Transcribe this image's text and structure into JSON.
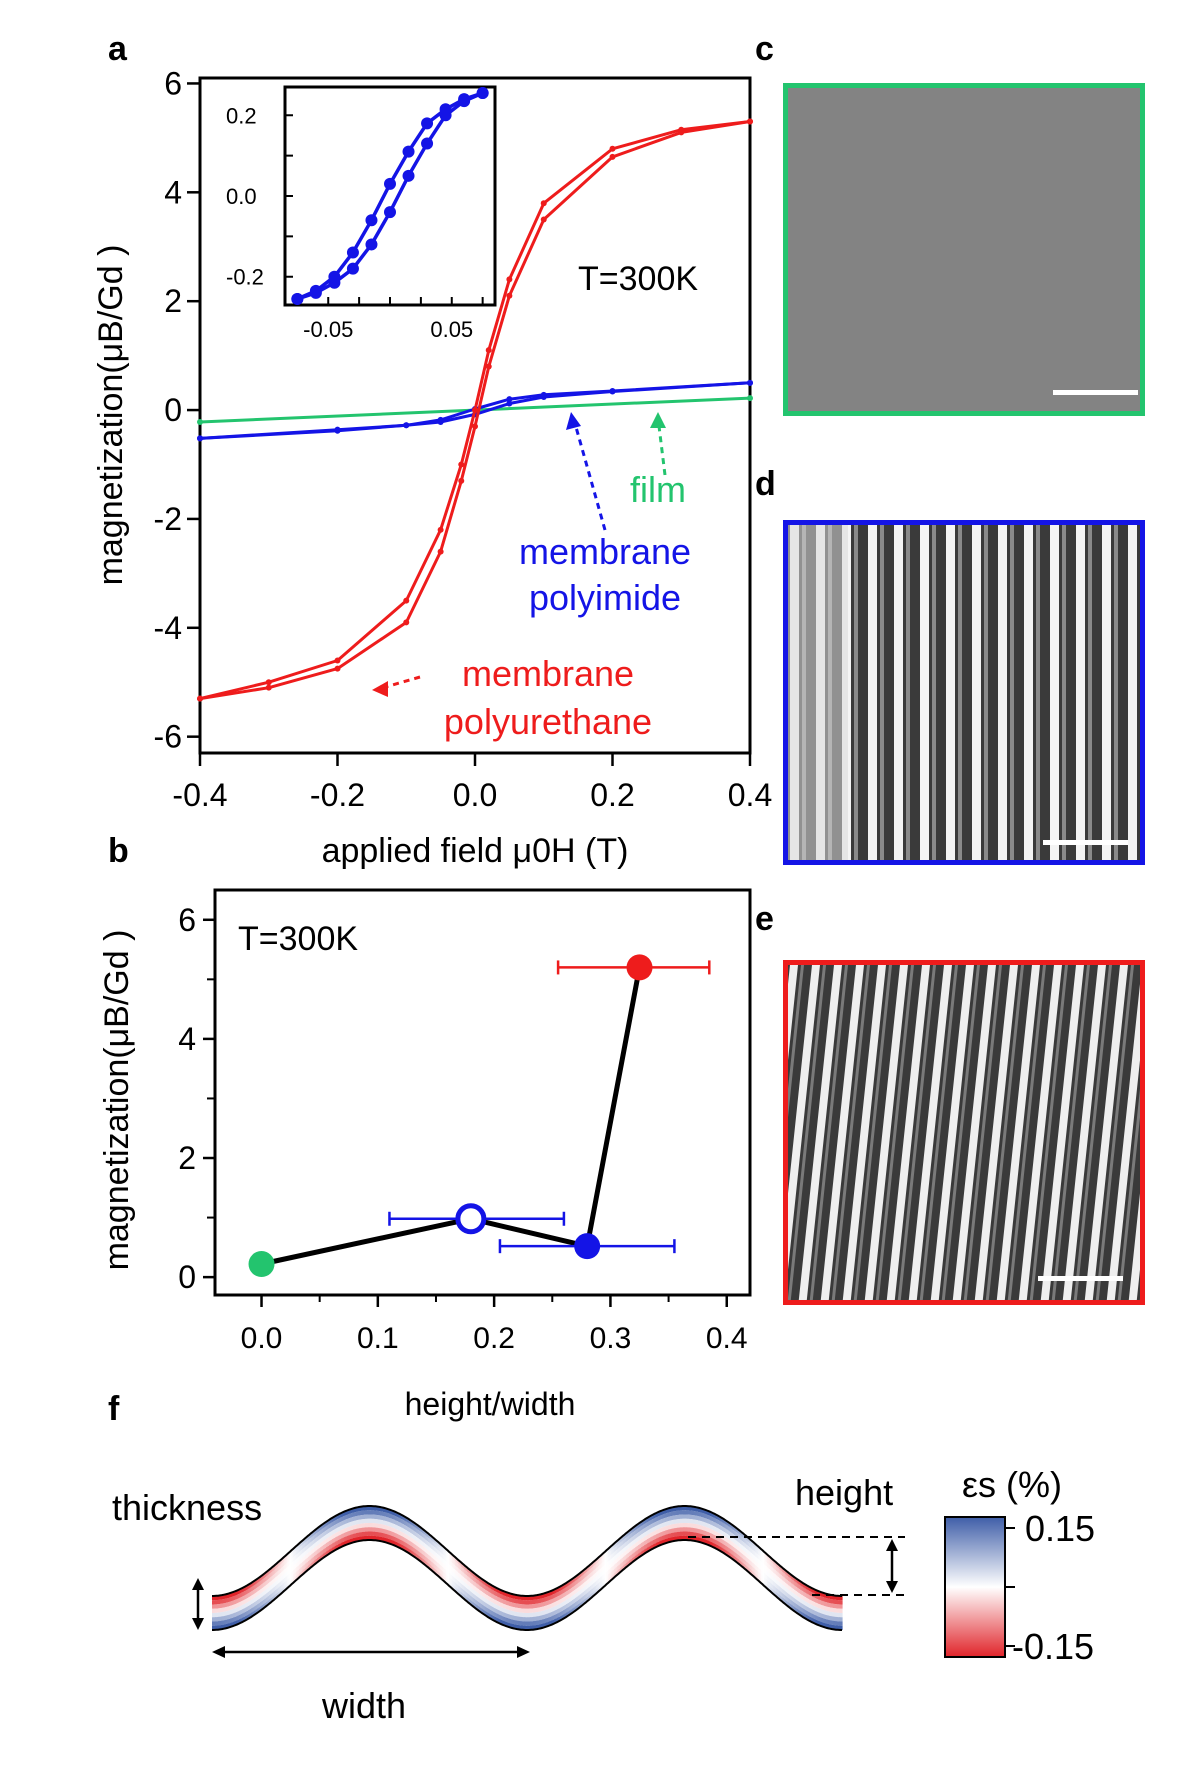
{
  "panel_labels": {
    "a": "a",
    "b": "b",
    "c": "c",
    "d": "d",
    "e": "e",
    "f": "f"
  },
  "colors": {
    "red": "#ee1c1c",
    "blue": "#1414e6",
    "green": "#23c46e",
    "black": "#000000"
  },
  "chart_data": [
    {
      "id": "a",
      "type": "line",
      "xlabel": "applied field μ0H (T)",
      "ylabel": "magnetization(μB/Gd )",
      "xlim": [
        -0.4,
        0.4
      ],
      "ylim": [
        -6.3,
        6.1
      ],
      "xticks": [
        "-0.4",
        "-0.2",
        "0.0",
        "0.2",
        "0.4"
      ],
      "yticks": [
        "-6",
        "-4",
        "-2",
        "0",
        "2",
        "4",
        "6"
      ],
      "annotation": "T=300K",
      "series": [
        {
          "name": "membrane polyurethane",
          "color": "#ee1c1c",
          "label_lines": [
            "membrane",
            "polyurethane"
          ],
          "branches": [
            {
              "x": [
                -0.4,
                -0.3,
                -0.2,
                -0.1,
                -0.05,
                -0.02,
                0.0,
                0.02,
                0.05,
                0.1,
                0.2,
                0.3,
                0.4
              ],
              "y": [
                -5.3,
                -5.0,
                -4.6,
                -3.5,
                -2.2,
                -1.0,
                0.0,
                1.1,
                2.4,
                3.8,
                4.8,
                5.15,
                5.3
              ]
            },
            {
              "x": [
                -0.4,
                -0.3,
                -0.2,
                -0.1,
                -0.05,
                -0.02,
                0.0,
                0.02,
                0.05,
                0.1,
                0.2,
                0.3,
                0.4
              ],
              "y": [
                -5.3,
                -5.1,
                -4.75,
                -3.9,
                -2.6,
                -1.3,
                -0.3,
                0.8,
                2.1,
                3.5,
                4.65,
                5.1,
                5.3
              ]
            }
          ]
        },
        {
          "name": "membrane polyimide",
          "color": "#1414e6",
          "label_lines": [
            "membrane",
            "polyimide"
          ],
          "branches": [
            {
              "x": [
                -0.4,
                -0.2,
                -0.1,
                -0.05,
                0.0,
                0.05,
                0.1,
                0.2,
                0.4
              ],
              "y": [
                -0.52,
                -0.38,
                -0.28,
                -0.18,
                0.02,
                0.2,
                0.28,
                0.35,
                0.5
              ]
            },
            {
              "x": [
                -0.4,
                -0.2,
                -0.1,
                -0.05,
                0.0,
                0.05,
                0.1,
                0.2,
                0.4
              ],
              "y": [
                -0.52,
                -0.36,
                -0.28,
                -0.22,
                -0.08,
                0.12,
                0.24,
                0.34,
                0.5
              ]
            }
          ]
        },
        {
          "name": "film",
          "color": "#23c46e",
          "label_lines": [
            "film"
          ],
          "branches": [
            {
              "x": [
                -0.4,
                0.4
              ],
              "y": [
                -0.22,
                0.22
              ]
            }
          ]
        }
      ],
      "inset": {
        "xlim": [
          -0.085,
          0.085
        ],
        "ylim": [
          -0.27,
          0.27
        ],
        "xticks": [
          "-0.05",
          "0.05"
        ],
        "yticks": [
          "0.2",
          "0.0",
          "-0.2"
        ],
        "color": "#1414e6",
        "branches": [
          {
            "x": [
              -0.075,
              -0.06,
              -0.045,
              -0.03,
              -0.015,
              0.0,
              0.015,
              0.03,
              0.045,
              0.06,
              0.075
            ],
            "y": [
              -0.255,
              -0.24,
              -0.215,
              -0.18,
              -0.12,
              -0.04,
              0.05,
              0.13,
              0.2,
              0.235,
              0.255
            ]
          },
          {
            "x": [
              -0.075,
              -0.06,
              -0.045,
              -0.03,
              -0.015,
              0.0,
              0.015,
              0.03,
              0.045,
              0.06,
              0.075
            ],
            "y": [
              -0.255,
              -0.235,
              -0.2,
              -0.14,
              -0.06,
              0.03,
              0.11,
              0.18,
              0.215,
              0.24,
              0.255
            ]
          }
        ]
      }
    },
    {
      "id": "b",
      "type": "scatter",
      "xlabel": "height/width",
      "ylabel": "magnetization(μB/Gd )",
      "xlim": [
        -0.04,
        0.42
      ],
      "ylim": [
        -0.3,
        6.5
      ],
      "xticks": [
        "0.0",
        "0.1",
        "0.2",
        "0.3",
        "0.4"
      ],
      "yticks": [
        "0",
        "2",
        "4",
        "6"
      ],
      "annotation": "T=300K",
      "line_path": [
        [
          0.0,
          0.22
        ],
        [
          0.18,
          0.98
        ],
        [
          0.28,
          0.52
        ],
        [
          0.325,
          5.2
        ]
      ],
      "points": [
        {
          "x": 0.0,
          "y": 0.22,
          "color": "#23c46e",
          "filled": true
        },
        {
          "x": 0.18,
          "y": 0.98,
          "color": "#1414e6",
          "filled": false,
          "xerr": [
            0.11,
            0.26
          ]
        },
        {
          "x": 0.28,
          "y": 0.52,
          "color": "#1414e6",
          "filled": true,
          "xerr": [
            0.205,
            0.355
          ]
        },
        {
          "x": 0.325,
          "y": 5.2,
          "color": "#ee1c1c",
          "filled": true,
          "xerr": [
            0.255,
            0.385
          ]
        }
      ]
    }
  ],
  "micrographs": [
    {
      "id": "c",
      "border": "#23c46e",
      "texture": "flat"
    },
    {
      "id": "d",
      "border": "#1414e6",
      "texture": "stripes"
    },
    {
      "id": "e",
      "border": "#ee1c1c",
      "texture": "stripes"
    }
  ],
  "schematic": {
    "thickness_label": "thickness",
    "height_label": "height",
    "width_label": "width",
    "colorbar_title": "εs (%)",
    "colorbar_max": "0.15",
    "colorbar_min": "-0.15",
    "colorbar_top_color": "#3f5ea8",
    "colorbar_bottom_color": "#e0242a"
  }
}
